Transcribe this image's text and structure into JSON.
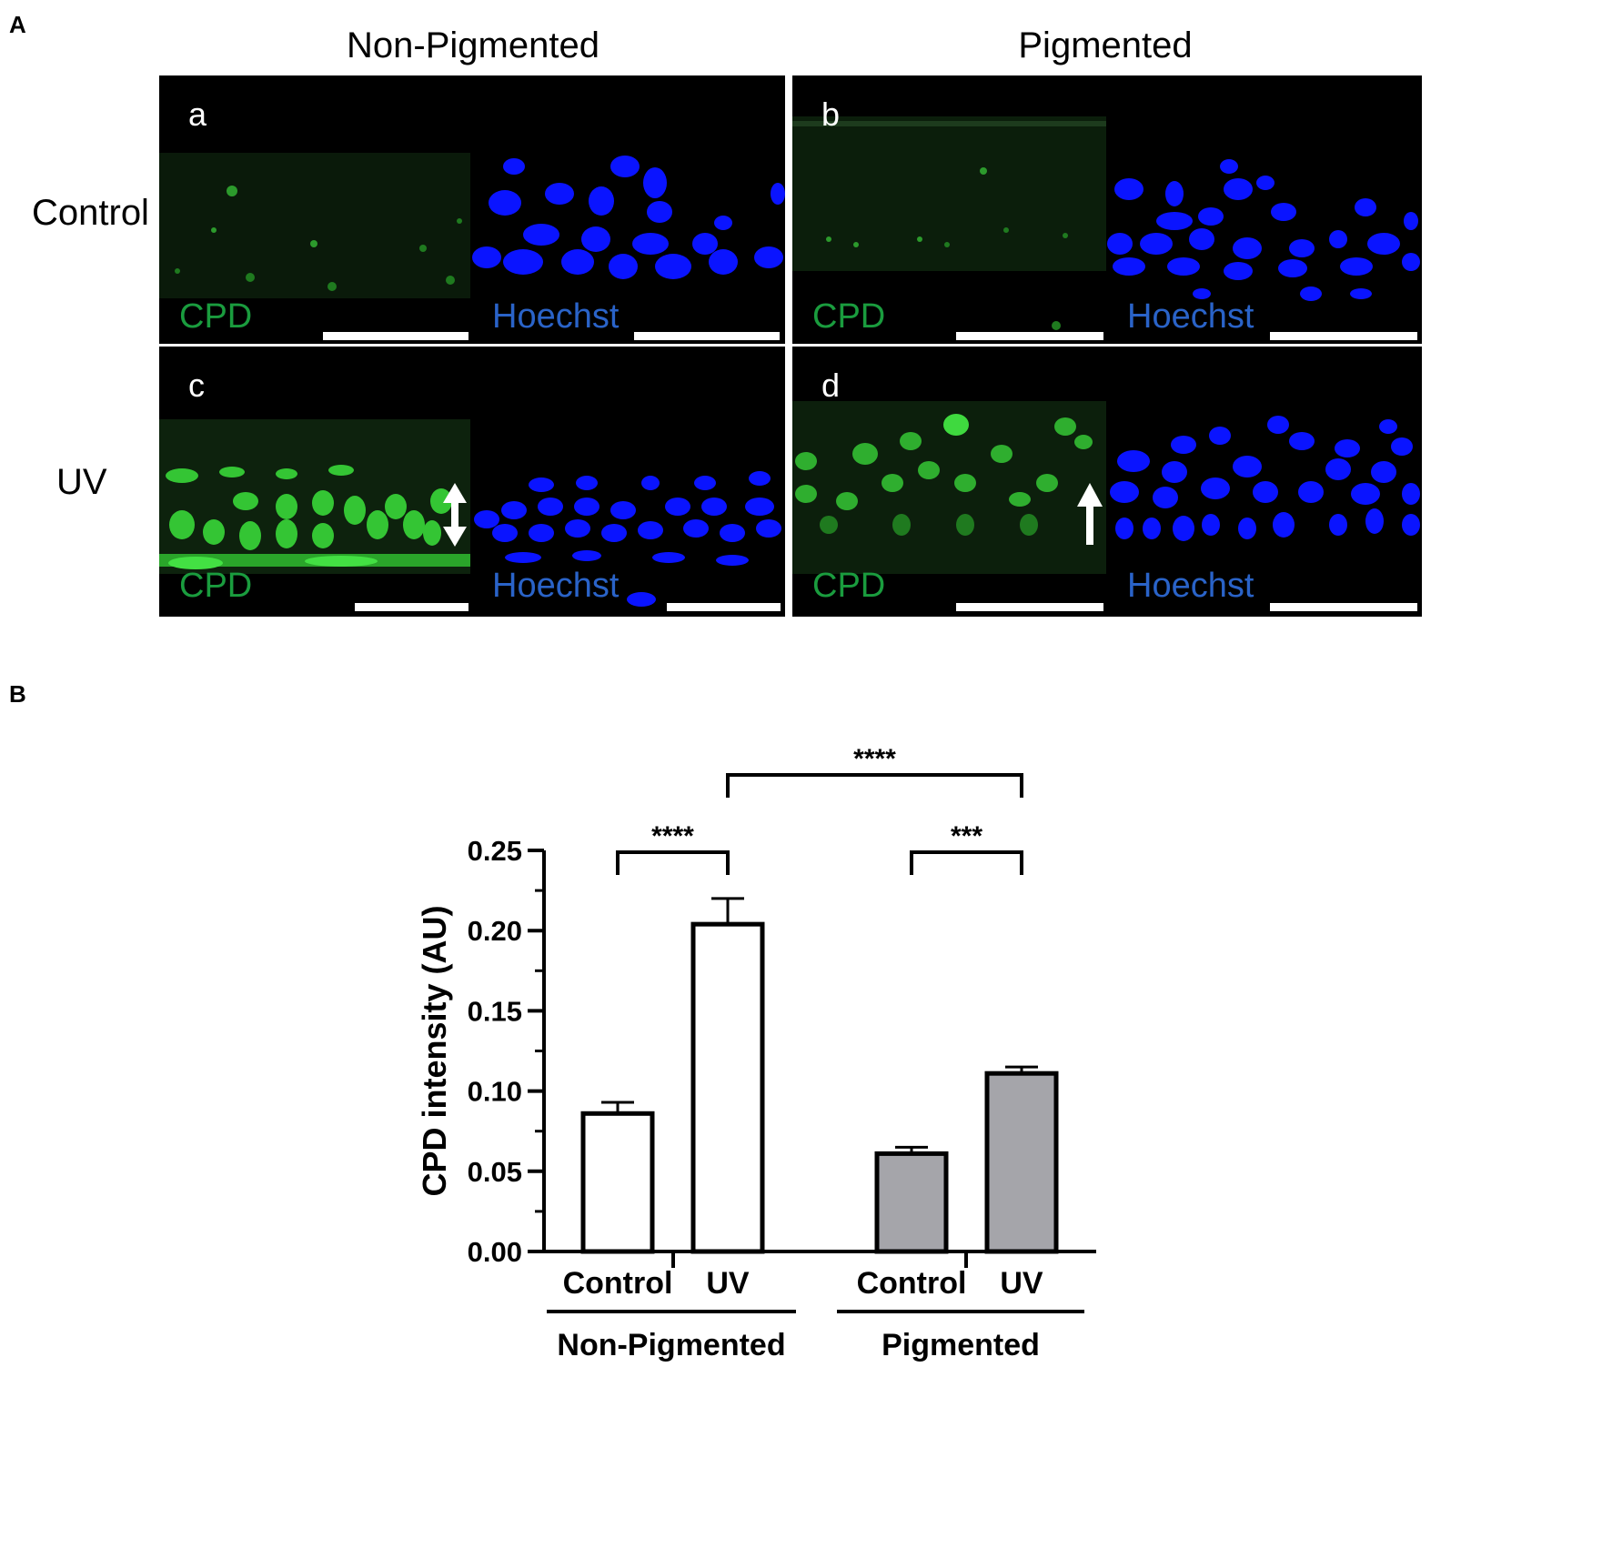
{
  "panels": {
    "A": "A",
    "B": "B"
  },
  "panel_a": {
    "columns": [
      "Non-Pigmented",
      "Pigmented"
    ],
    "rows": [
      "Control",
      "UV"
    ],
    "subpanels": [
      "a",
      "b",
      "c",
      "d"
    ],
    "channel_labels": {
      "cpd": "CPD",
      "hoechst": "Hoechst"
    },
    "colors": {
      "cpd": "#1a9c3e",
      "hoechst": "#2a63c8",
      "nuclei": "#0a14ff",
      "cpd_signal": "#3bd43b"
    }
  },
  "chart_data": {
    "type": "bar",
    "ylabel": "CPD intensity (AU)",
    "ylim": [
      0,
      0.25
    ],
    "yticks": [
      "0.00",
      "0.05",
      "0.10",
      "0.15",
      "0.20",
      "0.25"
    ],
    "categories": [
      "Control",
      "UV",
      "Control",
      "UV"
    ],
    "groups": [
      "Non-Pigmented",
      "Pigmented"
    ],
    "values": [
      0.086,
      0.204,
      0.061,
      0.111
    ],
    "errors": [
      0.007,
      0.016,
      0.004,
      0.004
    ],
    "bar_colors": [
      "#ffffff",
      "#ffffff",
      "#a5a5aa",
      "#a5a5aa"
    ],
    "significance": [
      {
        "from": 0,
        "to": 1,
        "label": "****"
      },
      {
        "from": 2,
        "to": 3,
        "label": "***"
      },
      {
        "from": 1,
        "to": 3,
        "label": "****"
      }
    ]
  }
}
